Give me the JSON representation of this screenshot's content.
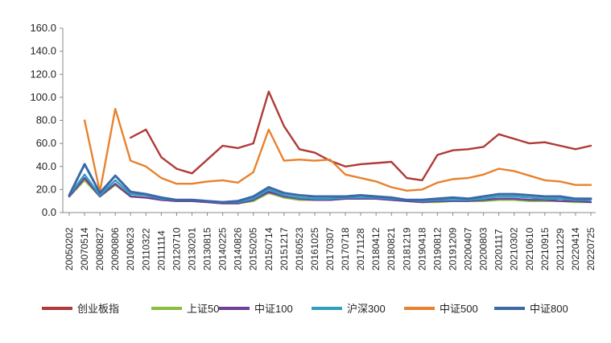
{
  "chart_data": {
    "type": "line",
    "title": "",
    "xlabel": "",
    "ylabel": "",
    "ylim": [
      0,
      160
    ],
    "yticks": [
      "0.0",
      "20.0",
      "40.0",
      "60.0",
      "80.0",
      "100.0",
      "120.0",
      "140.0",
      "160.0"
    ],
    "x": [
      "20050202",
      "20070514",
      "20080827",
      "20090806",
      "20100623",
      "20110322",
      "20111114",
      "20120710",
      "20130201",
      "20130815",
      "20140225",
      "20140826",
      "20150205",
      "20150714",
      "20151217",
      "20160523",
      "20161025",
      "20170307",
      "20170718",
      "20171128",
      "20180412",
      "20180821",
      "20181219",
      "20190418",
      "20190812",
      "20191209",
      "20200407",
      "20200803",
      "20201117",
      "20210302",
      "20210610",
      "20210915",
      "20211229",
      "20220414",
      "20220725"
    ],
    "grid": false,
    "legend_position": "bottom",
    "series": [
      {
        "name": "创业板指",
        "color": "#b03a37",
        "values": [
          null,
          null,
          null,
          null,
          65,
          72,
          48,
          38,
          34,
          46,
          58,
          56,
          60,
          105,
          75,
          55,
          52,
          45,
          40,
          42,
          43,
          44,
          30,
          28,
          50,
          54,
          55,
          57,
          68,
          64,
          60,
          61,
          58,
          55,
          58
        ]
      },
      {
        "name": "上证50",
        "color": "#8bbd3f",
        "values": [
          14,
          28,
          14,
          24,
          14,
          13,
          11,
          10,
          10,
          9,
          8,
          8,
          10,
          17,
          13,
          11,
          11,
          11,
          12,
          12,
          12,
          11,
          10,
          9,
          9,
          10,
          10,
          10,
          11,
          11,
          10,
          10,
          10,
          9,
          9
        ]
      },
      {
        "name": "中证100",
        "color": "#6f3f9b",
        "values": [
          14,
          30,
          14,
          25,
          14,
          13,
          11,
          10,
          10,
          9,
          8,
          8,
          11,
          18,
          14,
          12,
          11,
          11,
          12,
          12,
          12,
          11,
          10,
          9,
          10,
          10,
          10,
          11,
          12,
          12,
          11,
          11,
          10,
          10,
          9
        ]
      },
      {
        "name": "沪深300",
        "color": "#2e9fbf",
        "values": [
          15,
          33,
          15,
          28,
          16,
          15,
          12,
          11,
          11,
          10,
          9,
          9,
          12,
          20,
          15,
          13,
          12,
          12,
          13,
          13,
          13,
          12,
          11,
          10,
          11,
          11,
          11,
          12,
          14,
          14,
          13,
          12,
          12,
          11,
          11
        ]
      },
      {
        "name": "中证500",
        "color": "#e8822d",
        "values": [
          null,
          80,
          18,
          90,
          45,
          40,
          30,
          25,
          25,
          27,
          28,
          26,
          35,
          72,
          45,
          46,
          45,
          46,
          33,
          30,
          27,
          22,
          19,
          20,
          26,
          29,
          30,
          33,
          38,
          36,
          32,
          28,
          27,
          24,
          24
        ]
      },
      {
        "name": "中证800",
        "color": "#3c68a8",
        "values": [
          15,
          42,
          17,
          32,
          18,
          16,
          13,
          11,
          11,
          10,
          9,
          10,
          14,
          22,
          17,
          15,
          14,
          14,
          14,
          15,
          14,
          13,
          11,
          11,
          12,
          13,
          12,
          14,
          16,
          16,
          15,
          14,
          14,
          12,
          12
        ]
      }
    ]
  }
}
